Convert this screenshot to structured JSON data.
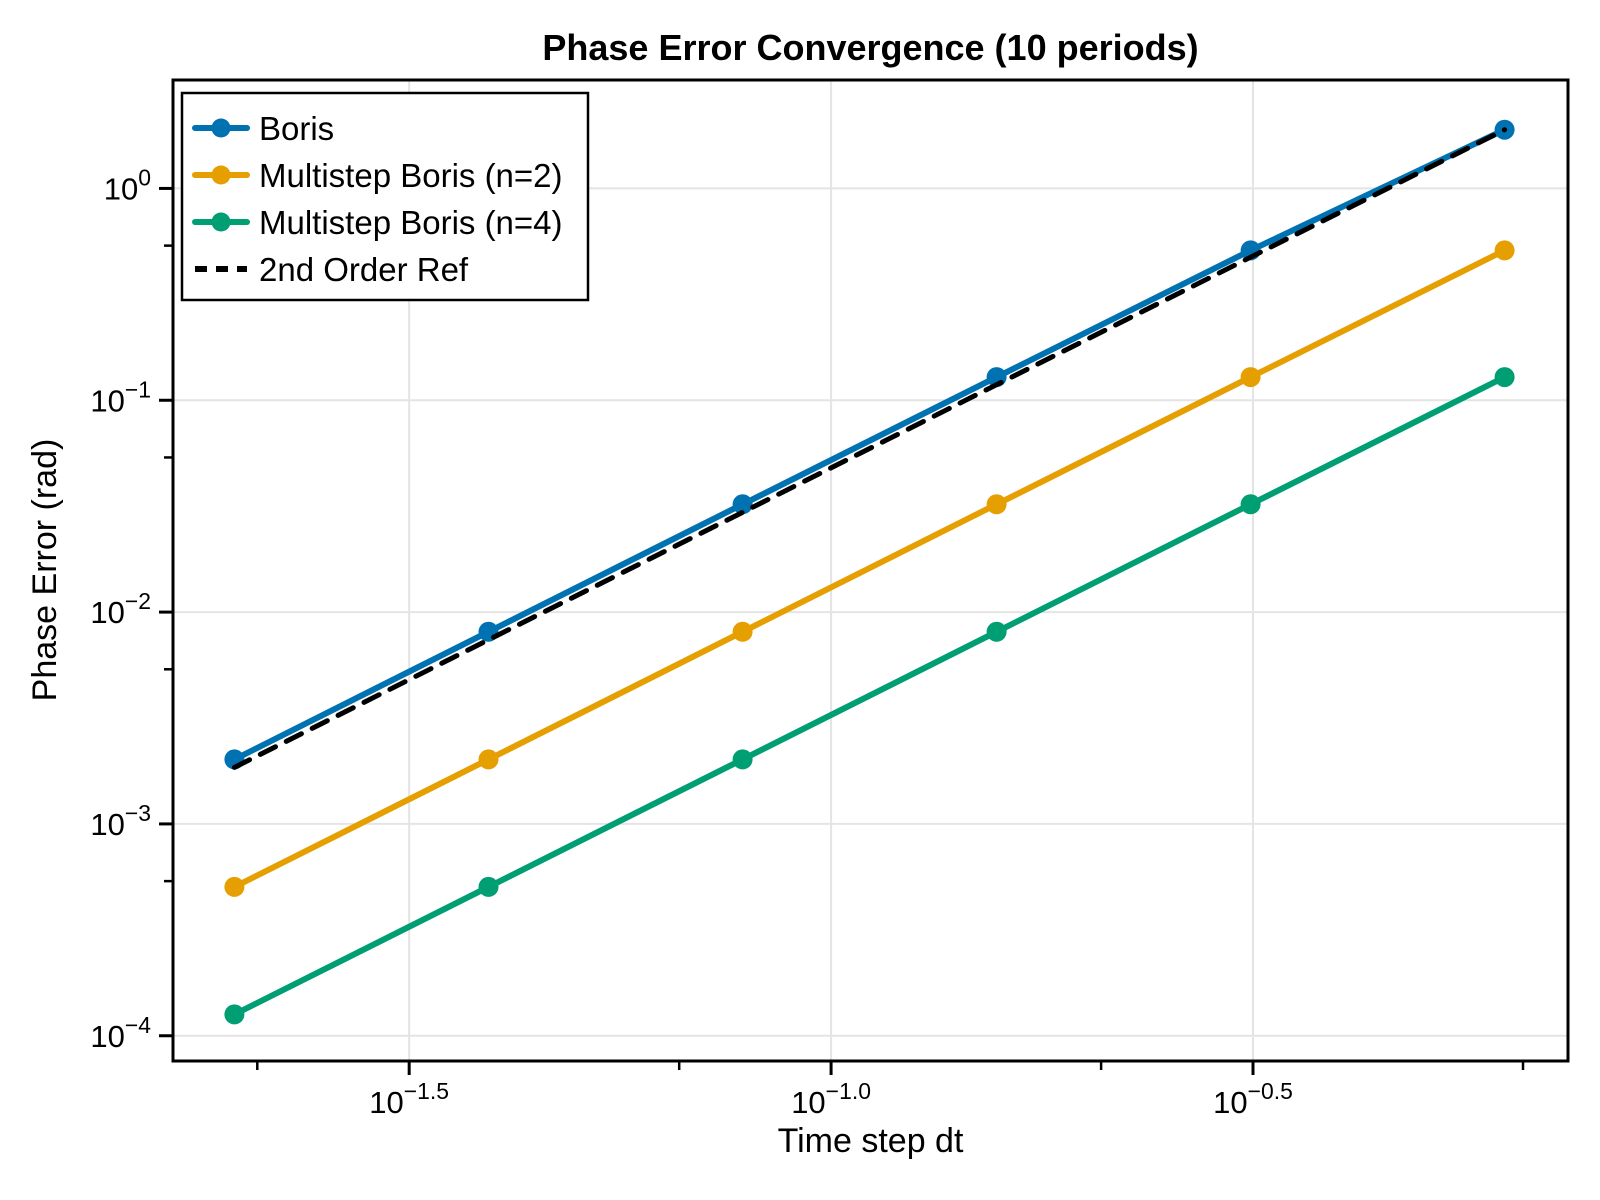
{
  "chart_data": {
    "type": "line",
    "title": "Phase Error Convergence (10 periods)",
    "xlabel": "Time step dt",
    "ylabel": "Phase Error (rad)",
    "xscale": "log",
    "yscale": "log",
    "grid": true,
    "legend_position": "top-left",
    "x": [
      0.01963,
      0.03927,
      0.07854,
      0.1571,
      0.3142,
      0.6283
    ],
    "series": [
      {
        "name": "Boris",
        "color": "#0072B2",
        "marker": "circle",
        "dashed": false,
        "values": [
          0.002017,
          0.008072,
          0.03227,
          0.1287,
          0.5097,
          1.894
        ]
      },
      {
        "name": "Multistep Boris (n=2)",
        "color": "#E69F00",
        "marker": "circle",
        "dashed": false,
        "values": [
          0.0005043,
          0.002017,
          0.008072,
          0.03227,
          0.1287,
          0.5097
        ]
      },
      {
        "name": "Multistep Boris (n=4)",
        "color": "#009E73",
        "marker": "circle",
        "dashed": false,
        "values": [
          0.0001261,
          0.0005043,
          0.002017,
          0.008072,
          0.03227,
          0.1287
        ]
      },
      {
        "name": "2nd Order Ref",
        "color": "#000000",
        "marker": "none",
        "dashed": true,
        "values": [
          0.001849,
          0.007398,
          0.02959,
          0.1184,
          0.4735,
          1.894
        ]
      }
    ],
    "xlim": [
      0.0166,
      0.747
    ],
    "ylim": [
      7.6e-05,
      3.25
    ],
    "xtick_exponents": [
      "-1.5",
      "-1.0",
      "-0.5"
    ],
    "ytick_exponents": [
      "0",
      "-1",
      "-2",
      "-3",
      "-4"
    ],
    "xtick_minor_exponents": [
      -1.68,
      -1.18,
      -0.68,
      -0.18
    ],
    "ytick_minor_exponents": [
      -0.27,
      -1.27,
      -2.27,
      -3.27
    ],
    "colors": {
      "grid": "#e4e4e4",
      "frame": "#000000",
      "legend_border": "#000000",
      "legend_fill": "#ffffff"
    }
  }
}
